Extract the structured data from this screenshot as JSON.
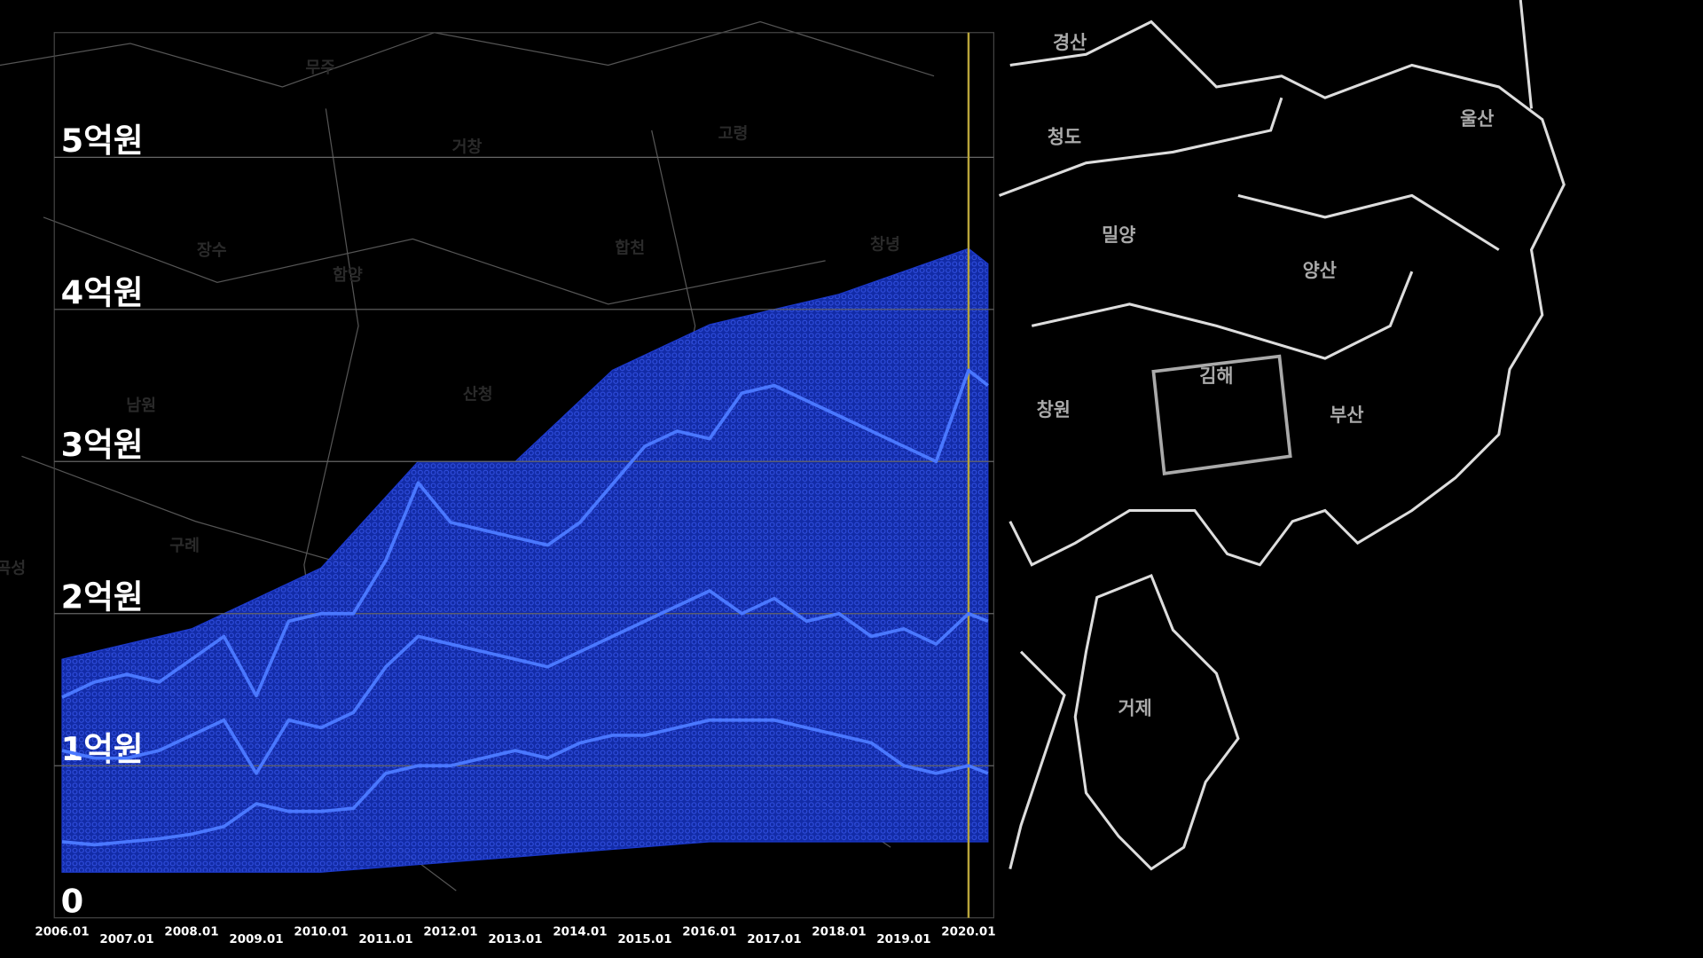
{
  "chart_data": {
    "type": "line",
    "xlim": [
      2005.88,
      2020.39
    ],
    "xticks": [
      {
        "value": 2006,
        "label": "2006.01"
      },
      {
        "value": 2007,
        "label": "2007.01"
      },
      {
        "value": 2008,
        "label": "2008.01"
      },
      {
        "value": 2009,
        "label": "2009.01"
      },
      {
        "value": 2010,
        "label": "2010.01"
      },
      {
        "value": 2011,
        "label": "2011.01"
      },
      {
        "value": 2012,
        "label": "2012.01"
      },
      {
        "value": 2013,
        "label": "2013.01"
      },
      {
        "value": 2014,
        "label": "2014.01"
      },
      {
        "value": 2015,
        "label": "2015.01"
      },
      {
        "value": 2016,
        "label": "2016.01"
      },
      {
        "value": 2017,
        "label": "2017.01"
      },
      {
        "value": 2018,
        "label": "2018.01"
      },
      {
        "value": 2019,
        "label": "2019.01"
      },
      {
        "value": 2020,
        "label": "2020.01"
      }
    ],
    "ylim": [
      0,
      5.82
    ],
    "yticks": [
      0,
      {
        "value": 1,
        "label": "1억원"
      },
      {
        "value": 2,
        "label": "2억원"
      },
      {
        "value": 3,
        "label": "3억원"
      },
      {
        "value": 4,
        "label": "4억원"
      },
      {
        "value": 5,
        "label": "5억원"
      }
    ],
    "grid": true,
    "marker_x": 2020.0,
    "marker_color": "#b8a43a",
    "x": [
      2006,
      2006.5,
      2007,
      2007.5,
      2008,
      2008.5,
      2009,
      2009.5,
      2010,
      2010.5,
      2011,
      2011.5,
      2012,
      2012.5,
      2013,
      2013.5,
      2014,
      2014.5,
      2015,
      2015.5,
      2016,
      2016.5,
      2017,
      2017.5,
      2018,
      2018.5,
      2019,
      2019.5,
      2020,
      2020.3
    ],
    "series": [
      {
        "color": "#4a78ff",
        "values": [
          1.45,
          1.55,
          1.6,
          1.55,
          1.7,
          1.85,
          1.46,
          1.95,
          2.0,
          2.0,
          2.35,
          2.86,
          2.6,
          2.55,
          2.5,
          2.45,
          2.6,
          2.85,
          3.1,
          3.2,
          3.15,
          3.45,
          3.5,
          3.4,
          3.3,
          3.2,
          3.1,
          3.0,
          3.6,
          3.5
        ]
      },
      {
        "color": "#4a78ff",
        "values": [
          1.1,
          1.05,
          1.05,
          1.1,
          1.2,
          1.3,
          0.95,
          1.3,
          1.25,
          1.35,
          1.65,
          1.85,
          1.8,
          1.75,
          1.7,
          1.65,
          1.75,
          1.85,
          1.95,
          2.05,
          2.15,
          2.0,
          2.1,
          1.95,
          2.0,
          1.85,
          1.9,
          1.8,
          2.0,
          1.95
        ]
      },
      {
        "color": "#4a78ff",
        "values": [
          0.5,
          0.48,
          0.5,
          0.52,
          0.55,
          0.6,
          0.75,
          0.7,
          0.7,
          0.72,
          0.95,
          1.0,
          1.0,
          1.05,
          1.1,
          1.05,
          1.15,
          1.2,
          1.2,
          1.25,
          1.3,
          1.3,
          1.3,
          1.25,
          1.2,
          1.15,
          1.0,
          0.95,
          1.0,
          0.95
        ]
      }
    ],
    "cloud": {
      "color": "#1f3fe0",
      "x": [
        2006,
        2008,
        2010,
        2011.5,
        2013,
        2014.5,
        2016,
        2018,
        2020,
        2020.3
      ],
      "upper": [
        1.7,
        1.9,
        2.3,
        3.0,
        3.0,
        3.6,
        3.9,
        4.1,
        4.4,
        4.3
      ],
      "lower": [
        0.3,
        0.3,
        0.3,
        0.35,
        0.4,
        0.45,
        0.5,
        0.5,
        0.5,
        0.5
      ]
    }
  },
  "map_labels": [
    "경산",
    "청도",
    "밀양",
    "양산",
    "울산",
    "김해",
    "창원",
    "부산",
    "거제",
    "무주",
    "거창",
    "고령",
    "장수",
    "함양",
    "합천",
    "창녕",
    "산청",
    "남원",
    "구례",
    "곡성"
  ]
}
